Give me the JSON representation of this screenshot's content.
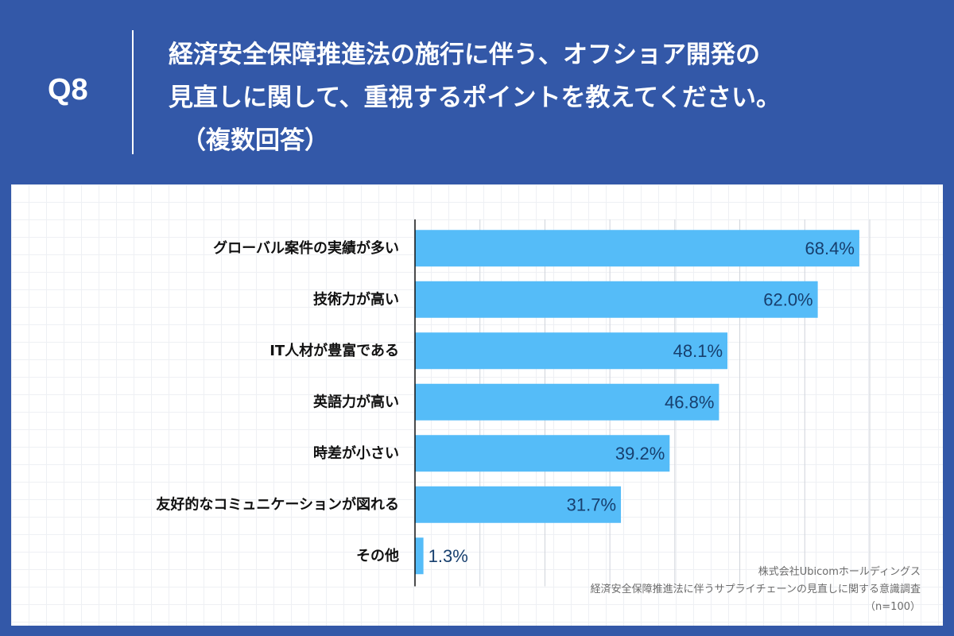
{
  "header": {
    "q_number": "Q8",
    "question_lines": [
      "経済安全保障推進法の施行に伴う、オフショア開発の",
      "見直しに関して、重視するポイントを教えてください。",
      "（複数回答）"
    ]
  },
  "colors": {
    "background": "#3358a8",
    "bar": "#55bcf8",
    "value_label": "#173f6e",
    "category_label": "#111111",
    "gridline": "#cfd3da"
  },
  "chart_data": {
    "type": "bar",
    "orientation": "horizontal",
    "categories": [
      "グローバル案件の実績が多い",
      "技術力が高い",
      "IT人材が豊富である",
      "英語力が高い",
      "時差が小さい",
      "友好的なコミュニケーションが図れる",
      "その他"
    ],
    "values": [
      68.4,
      62.0,
      48.1,
      46.8,
      39.2,
      31.7,
      1.3
    ],
    "value_labels": [
      "68.4%",
      "62.0%",
      "48.1%",
      "46.8%",
      "39.2%",
      "31.7%",
      "1.3%"
    ],
    "xlim": [
      0,
      70
    ],
    "grid": true
  },
  "source": {
    "lines": [
      "株式会社Ubicomホールディングス",
      "経済安全保障推進法に伴うサプライチェーンの見直しに関する意識調査",
      "（n=100）"
    ]
  }
}
